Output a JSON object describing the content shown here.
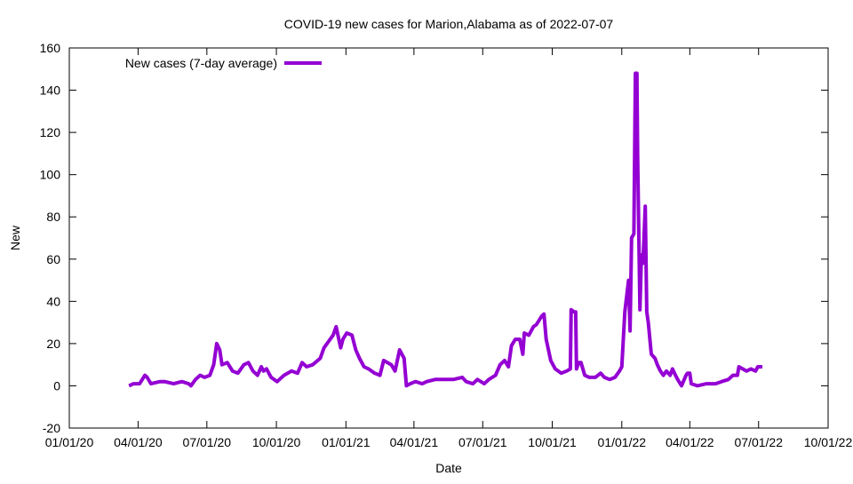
{
  "chart_data": {
    "type": "line",
    "title": "COVID-19 new cases for Marion,Alabama as of 2022-07-07",
    "xlabel": "Date",
    "ylabel": "New",
    "ylim": [
      -20,
      160
    ],
    "yticks": [
      "-20",
      "0",
      "20",
      "40",
      "60",
      "80",
      "100",
      "120",
      "140",
      "160"
    ],
    "x_unit": "days since 2020-01-01",
    "xlim": [
      0,
      1004
    ],
    "xticks": [
      {
        "day": 0,
        "label": "01/01/20"
      },
      {
        "day": 91,
        "label": "04/01/20"
      },
      {
        "day": 182,
        "label": "07/01/20"
      },
      {
        "day": 274,
        "label": "10/01/20"
      },
      {
        "day": 366,
        "label": "01/01/21"
      },
      {
        "day": 456,
        "label": "04/01/21"
      },
      {
        "day": 547,
        "label": "07/01/21"
      },
      {
        "day": 639,
        "label": "10/01/21"
      },
      {
        "day": 731,
        "label": "01/01/22"
      },
      {
        "day": 821,
        "label": "04/01/22"
      },
      {
        "day": 912,
        "label": "07/01/22"
      },
      {
        "day": 1004,
        "label": "10/01/22"
      }
    ],
    "grid": false,
    "legend_position": "top-left",
    "series": [
      {
        "name": "New cases (7-day average)",
        "color": "#9400d3",
        "x": [
          79,
          85,
          93,
          100,
          103,
          108,
          120,
          126,
          138,
          149,
          158,
          161,
          167,
          173,
          179,
          186,
          191,
          195,
          199,
          202,
          209,
          216,
          223,
          231,
          237,
          243,
          249,
          254,
          257,
          261,
          267,
          275,
          284,
          294,
          302,
          308,
          314,
          322,
          332,
          337,
          343,
          349,
          353,
          359,
          362,
          367,
          374,
          379,
          384,
          390,
          396,
          404,
          411,
          416,
          426,
          431,
          437,
          443,
          446,
          451,
          458,
          467,
          473,
          484,
          496,
          508,
          520,
          525,
          534,
          540,
          549,
          555,
          564,
          570,
          576,
          581,
          585,
          590,
          596,
          600,
          602,
          608,
          614,
          618,
          625,
          628,
          631,
          637,
          643,
          651,
          658,
          663,
          664,
          668,
          670,
          671,
          674,
          677,
          682,
          688,
          696,
          703,
          708,
          715,
          722,
          728,
          731,
          735,
          740,
          742,
          744,
          747,
          749,
          751,
          752,
          755,
          757,
          759,
          762,
          764,
          766,
          770,
          775,
          778,
          782,
          786,
          790,
          795,
          798,
          802,
          805,
          810,
          816,
          818,
          821,
          823,
          831,
          843,
          855,
          863,
          872,
          878,
          884,
          886,
          891,
          896,
          902,
          908,
          911,
          917
        ],
        "y": [
          0,
          1,
          1,
          5,
          4,
          1,
          2,
          2,
          1,
          2,
          1,
          0,
          3,
          5,
          4,
          5,
          10,
          20,
          17,
          10,
          11,
          7,
          6,
          10,
          11,
          7,
          5,
          9,
          7,
          8,
          4,
          2,
          5,
          7,
          6,
          11,
          9,
          10,
          13,
          18,
          21,
          24,
          28,
          18,
          22,
          25,
          24,
          17,
          13,
          9,
          8,
          6,
          5,
          12,
          10,
          7,
          17,
          13,
          0,
          1,
          2,
          1,
          2,
          3,
          3,
          3,
          4,
          2,
          1,
          3,
          1,
          3,
          5,
          10,
          12,
          9,
          19,
          22,
          22,
          15,
          25,
          24,
          28,
          29,
          33,
          34,
          22,
          12,
          8,
          6,
          7,
          8,
          36,
          35,
          35,
          8,
          11,
          11,
          5,
          4,
          4,
          6,
          4,
          3,
          4,
          7,
          9,
          35,
          50,
          26,
          70,
          72,
          148,
          148,
          110,
          36,
          62,
          58,
          85,
          35,
          30,
          15,
          13,
          10,
          7,
          5,
          7,
          5,
          8,
          5,
          3,
          0,
          5,
          6,
          6,
          1,
          0,
          1,
          1,
          2,
          3,
          5,
          5,
          9,
          8,
          7,
          8,
          7,
          9,
          9
        ]
      }
    ]
  }
}
